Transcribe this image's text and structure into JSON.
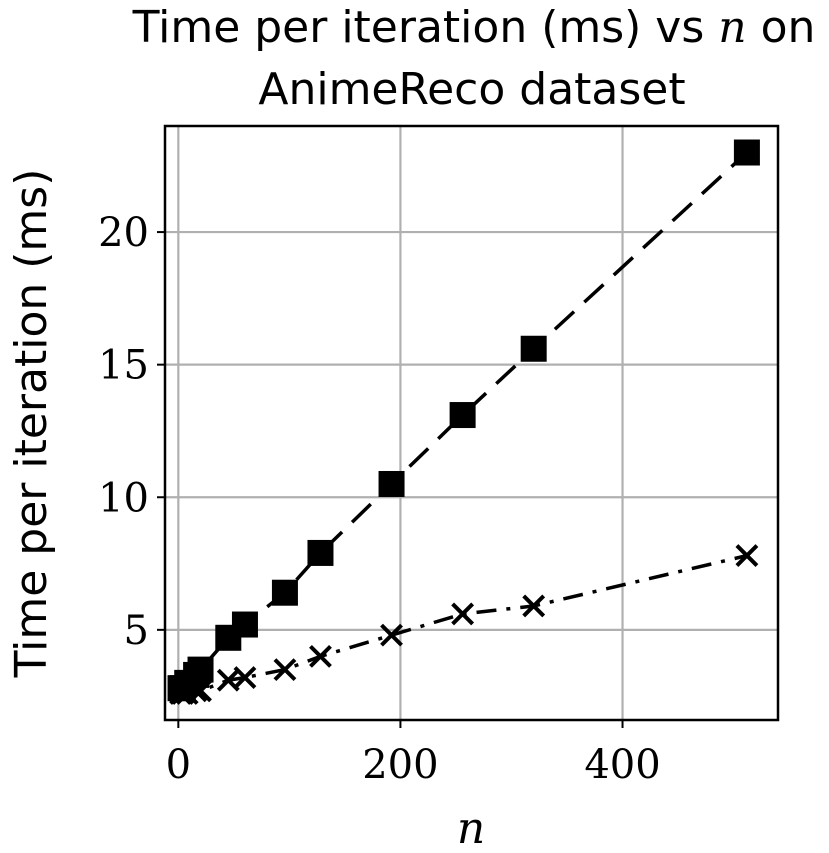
{
  "chart_data": {
    "type": "line",
    "title_line1_prefix": "Time per iteration (ms) vs",
    "title_line1_var": "n",
    "title_line1_suffix": "on",
    "title_line2": "AnimeReco dataset",
    "xlabel": "n",
    "ylabel": "Time per iteration (ms)",
    "xlim": [
      -12,
      540
    ],
    "ylim": [
      1.6,
      24.0
    ],
    "xticks": [
      0,
      200,
      400
    ],
    "yticks": [
      5,
      10,
      15,
      20
    ],
    "grid": true,
    "series": [
      {
        "marker": "square",
        "linestyle": "dashed",
        "color": "#000000",
        "points": [
          [
            2,
            2.8
          ],
          [
            4,
            2.8
          ],
          [
            8,
            3.0
          ],
          [
            16,
            3.3
          ],
          [
            20,
            3.5
          ],
          [
            45,
            4.7
          ],
          [
            60,
            5.2
          ],
          [
            96,
            6.4
          ],
          [
            128,
            7.9
          ],
          [
            192,
            10.5
          ],
          [
            256,
            13.1
          ],
          [
            320,
            15.6
          ],
          [
            512,
            23.0
          ]
        ]
      },
      {
        "marker": "x",
        "linestyle": "dashdot",
        "color": "#000000",
        "points": [
          [
            2,
            2.6
          ],
          [
            4,
            2.6
          ],
          [
            8,
            2.6
          ],
          [
            16,
            2.7
          ],
          [
            20,
            2.7
          ],
          [
            45,
            3.1
          ],
          [
            60,
            3.2
          ],
          [
            96,
            3.5
          ],
          [
            128,
            4.0
          ],
          [
            192,
            4.8
          ],
          [
            256,
            5.6
          ],
          [
            320,
            5.9
          ],
          [
            512,
            7.8
          ]
        ]
      }
    ]
  }
}
